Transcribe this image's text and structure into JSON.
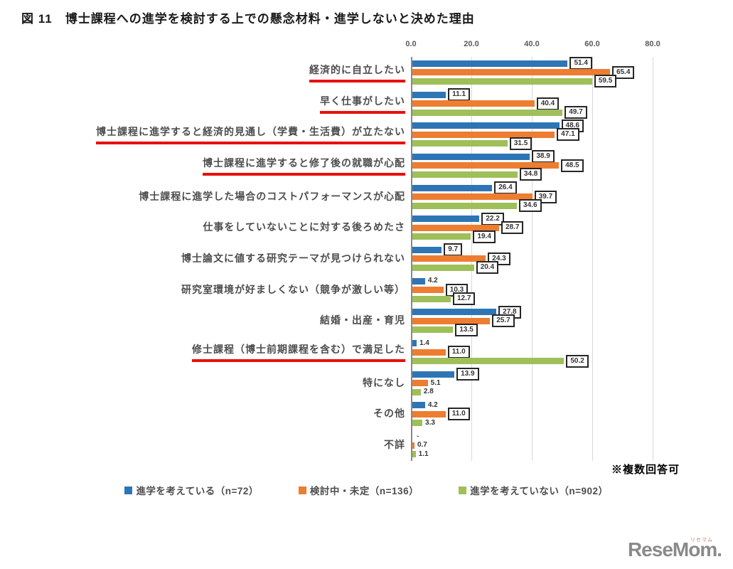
{
  "title": "図 11　博士課程への進学を検討する上での懸念材料・進学しないと決めた理由",
  "note": "※複数回答可",
  "watermark": {
    "text": "ReseMom.",
    "ruby": "リセマム"
  },
  "colors": {
    "blue": "#2E75B6",
    "orange": "#ED7D31",
    "green": "#9FBF59",
    "underline": "#E8100C"
  },
  "chart_data": {
    "type": "bar",
    "orientation": "horizontal",
    "xlim": [
      0,
      80
    ],
    "x_ticks": [
      "0.0",
      "20.0",
      "40.0",
      "60.0",
      "80.0"
    ],
    "grid": true,
    "legend_position": "bottom",
    "categories": [
      "経済的に自立したい",
      "早く仕事がしたい",
      "博士課程に進学すると経済的見通し（学費・生活費）が立たない",
      "博士課程に進学すると修了後の就職が心配",
      "博士課程に進学した場合のコストパフォーマンスが心配",
      "仕事をしていないことに対する後ろめたさ",
      "博士論文に値する研究テーマが見つけられない",
      "研究室環境が好ましくない（競争が激しい等）",
      "結婚・出産・育児",
      "修士課程（博士前期課程を含む）で満足した",
      "特になし",
      "その他",
      "不詳"
    ],
    "underlined_rows": [
      0,
      1,
      2,
      3,
      9
    ],
    "series": [
      {
        "name": "進学を考えている（n=72）",
        "color": "#2E75B6",
        "values": [
          51.4,
          11.1,
          48.6,
          38.9,
          26.4,
          22.2,
          9.7,
          4.2,
          27.8,
          1.4,
          13.9,
          4.2,
          0
        ],
        "labels": [
          "51.4",
          "11.1",
          "48.6",
          "38.9",
          "26.4",
          "22.2",
          "9.7",
          "4.2",
          "27.8",
          "1.4",
          "13.9",
          "4.2",
          "-"
        ]
      },
      {
        "name": "検討中・未定（n=136）",
        "color": "#ED7D31",
        "values": [
          65.4,
          40.4,
          47.1,
          48.5,
          39.7,
          28.7,
          24.3,
          10.3,
          25.7,
          11.0,
          5.1,
          11.0,
          0.7
        ],
        "labels": [
          "65.4",
          "40.4",
          "47.1",
          "48.5",
          "39.7",
          "28.7",
          "24.3",
          "10.3",
          "25.7",
          "11.0",
          "5.1",
          "11.0",
          "0.7"
        ]
      },
      {
        "name": "進学を考えていない（n=902）",
        "color": "#9FBF59",
        "values": [
          59.5,
          49.7,
          31.5,
          34.8,
          34.6,
          19.4,
          20.4,
          12.7,
          13.5,
          50.2,
          2.8,
          3.3,
          1.1
        ],
        "labels": [
          "59.5",
          "49.7",
          "31.5",
          "34.8",
          "34.6",
          "19.4",
          "20.4",
          "12.7",
          "13.5",
          "50.2",
          "2.8",
          "3.3",
          "1.1"
        ]
      }
    ]
  }
}
